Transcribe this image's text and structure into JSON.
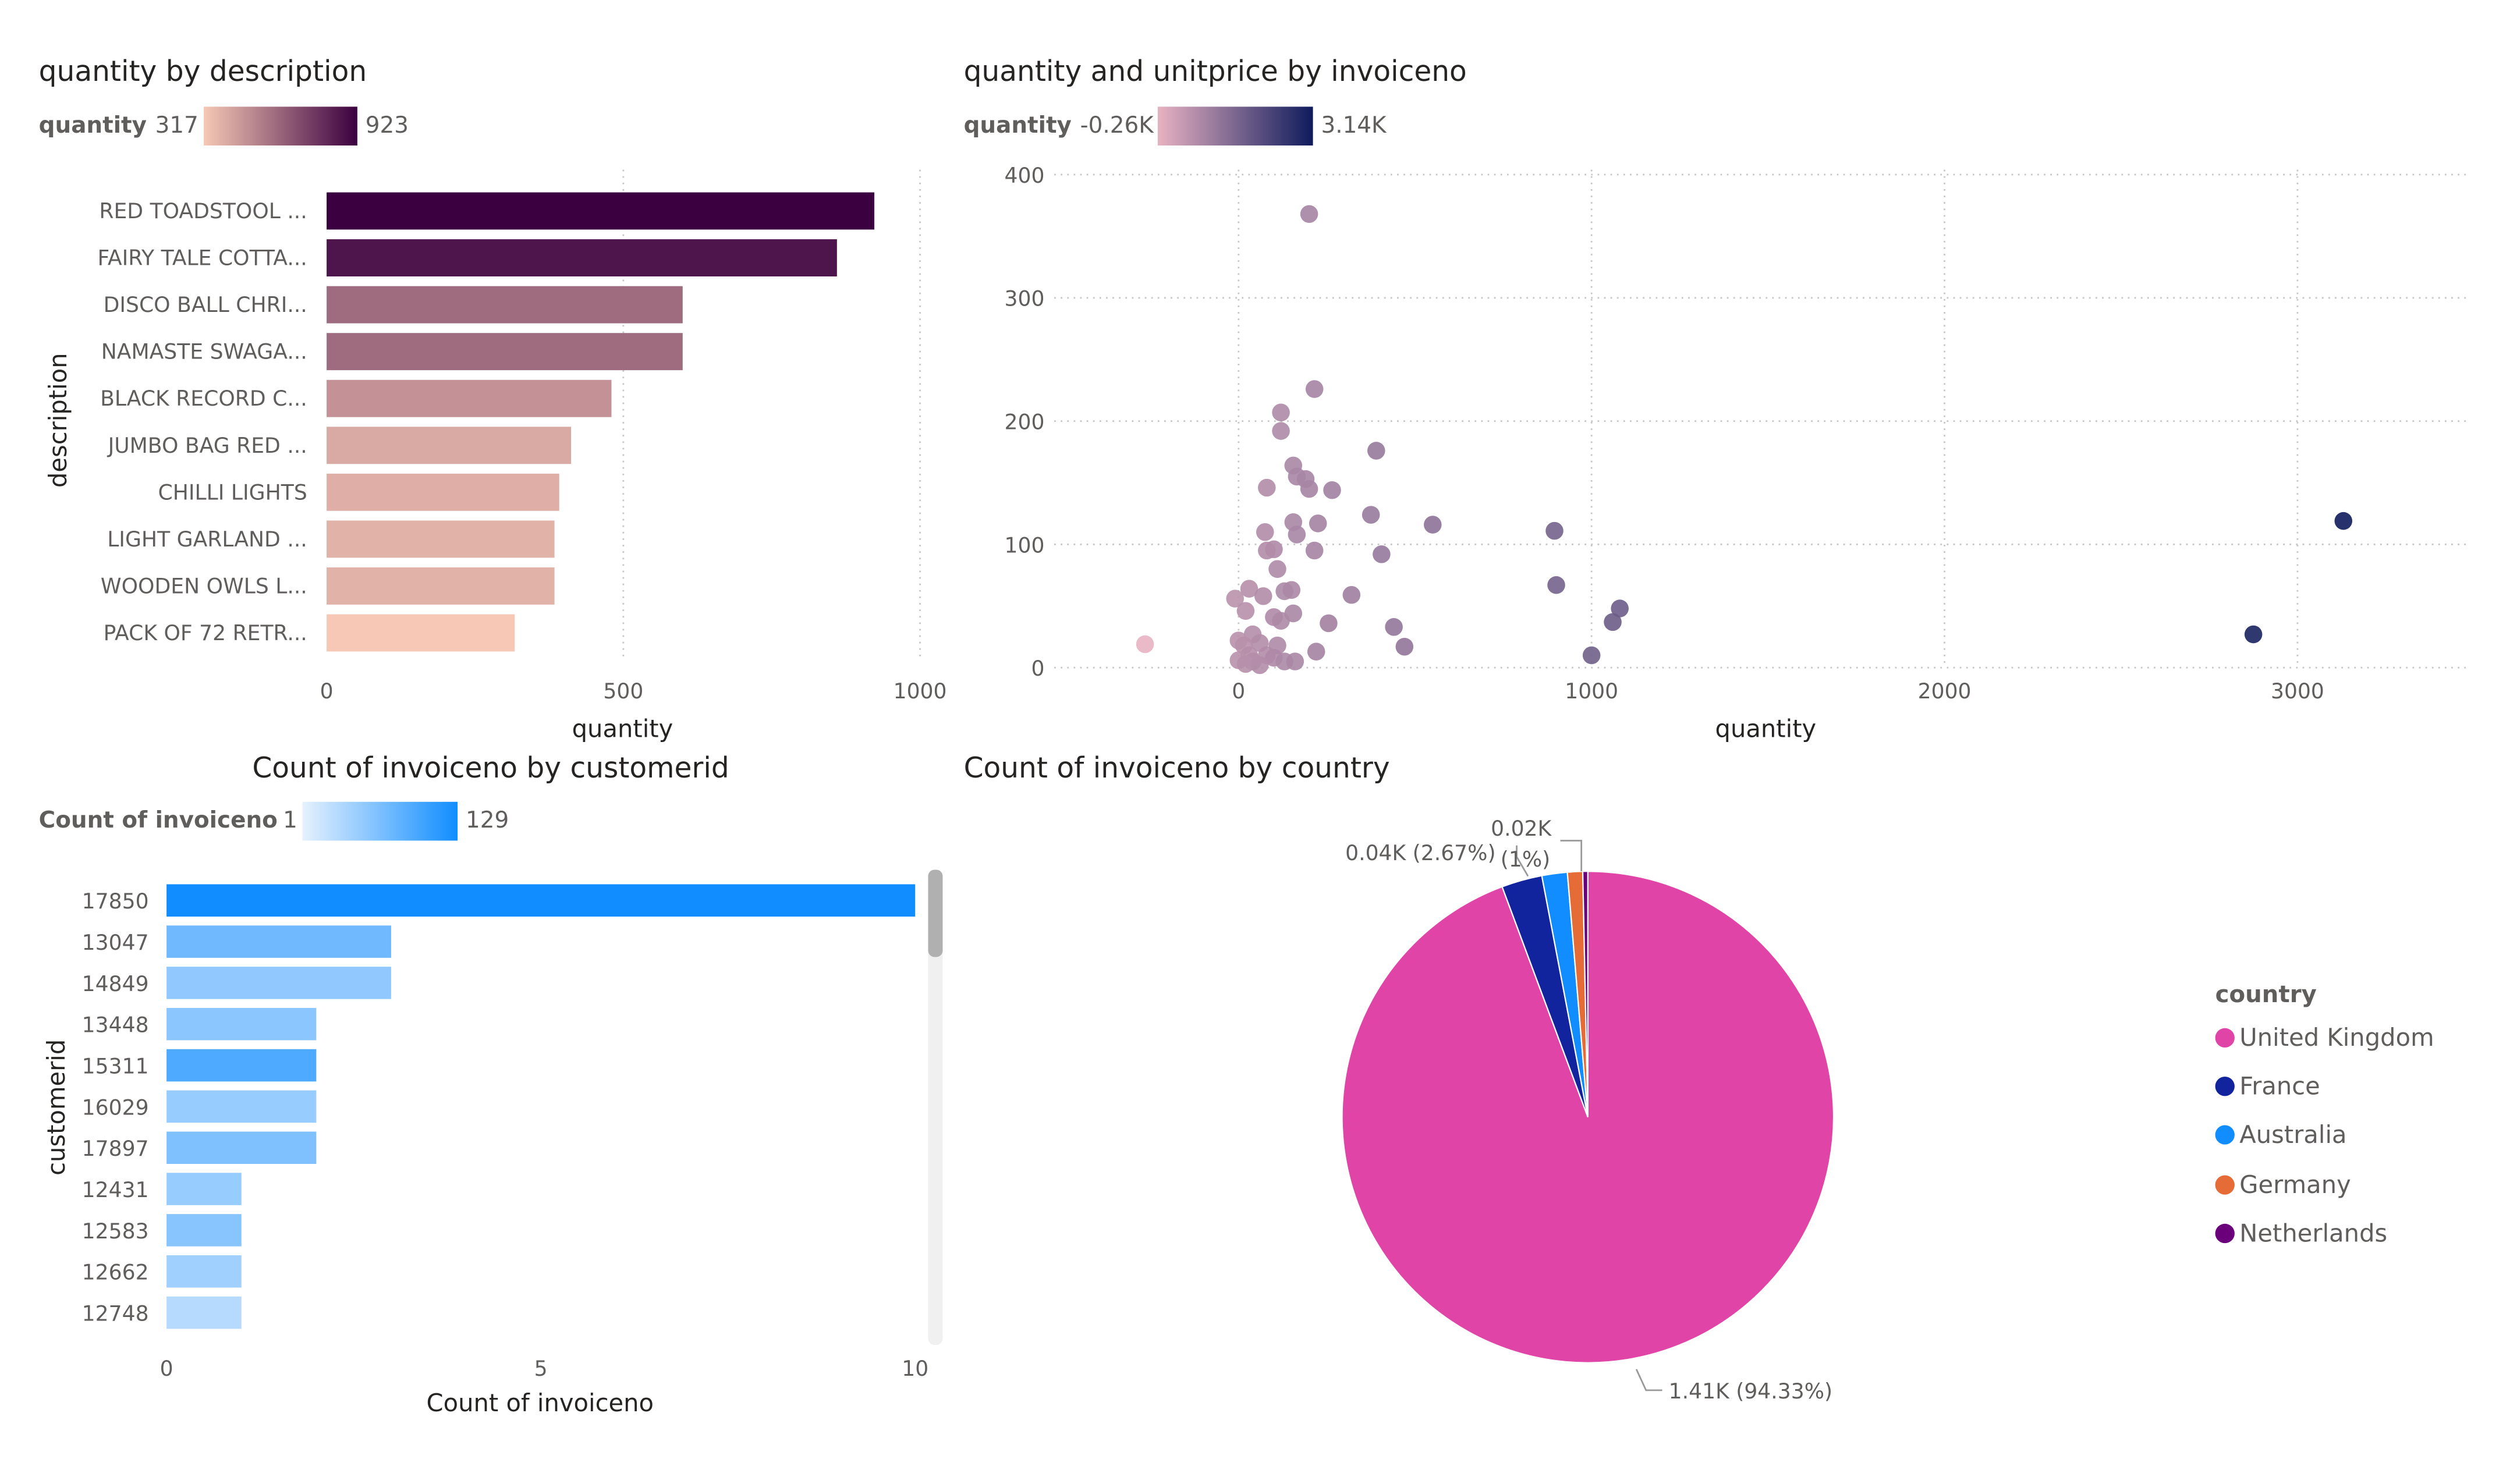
{
  "colors": {
    "purple_low": "#f6c8b5",
    "purple_high": "#3b0040",
    "navy_low": "#e8b2c2",
    "navy_high": "#0f1b5c",
    "blue_low": "#e6f1fd",
    "blue_high": "#118dff",
    "axis_text": "#605e5c",
    "grid": "#c8c6c4"
  },
  "chart_data": [
    {
      "type": "bar",
      "orientation": "horizontal",
      "title": "quantity by description",
      "legend": {
        "label": "quantity",
        "min": "317",
        "max": "923"
      },
      "categories": [
        "RED TOADSTOOL ...",
        "FAIRY TALE COTTA...",
        "DISCO BALL CHRI...",
        "NAMASTE SWAGA...",
        "BLACK RECORD C...",
        "JUMBO BAG RED ...",
        "CHILLI LIGHTS",
        "LIGHT GARLAND ...",
        "WOODEN OWLS L...",
        "PACK OF 72 RETR..."
      ],
      "values": [
        923,
        860,
        600,
        600,
        480,
        412,
        392,
        384,
        384,
        317
      ],
      "xlabel": "quantity",
      "ylabel": "description",
      "xlim": [
        0,
        1000
      ],
      "xticks": [
        "0",
        "500",
        "1000"
      ]
    },
    {
      "type": "scatter",
      "title": "quantity and unitprice by invoiceno",
      "legend": {
        "label": "quantity",
        "min": "-0.26K",
        "max": "3.14K"
      },
      "xlabel": "quantity",
      "ylabel": "unitprice",
      "xlim": [
        -600,
        3500
      ],
      "ylim": [
        0,
        400
      ],
      "xticks": [
        "0",
        "1000",
        "2000",
        "3000"
      ],
      "yticks": [
        "0",
        "100",
        "200",
        "300",
        "400"
      ],
      "points": [
        [
          -265,
          19
        ],
        [
          200,
          368
        ],
        [
          215,
          226
        ],
        [
          120,
          207
        ],
        [
          120,
          192
        ],
        [
          390,
          176
        ],
        [
          155,
          164
        ],
        [
          165,
          155
        ],
        [
          190,
          153
        ],
        [
          80,
          146
        ],
        [
          200,
          145
        ],
        [
          265,
          144
        ],
        [
          375,
          124
        ],
        [
          155,
          118
        ],
        [
          225,
          117
        ],
        [
          550,
          116
        ],
        [
          75,
          110
        ],
        [
          165,
          108
        ],
        [
          895,
          111
        ],
        [
          100,
          96
        ],
        [
          80,
          95
        ],
        [
          215,
          95
        ],
        [
          405,
          92
        ],
        [
          110,
          80
        ],
        [
          900,
          67
        ],
        [
          30,
          64
        ],
        [
          150,
          63
        ],
        [
          130,
          62
        ],
        [
          320,
          59
        ],
        [
          70,
          58
        ],
        [
          -10,
          56
        ],
        [
          1080,
          48
        ],
        [
          20,
          46
        ],
        [
          155,
          44
        ],
        [
          100,
          41
        ],
        [
          120,
          38
        ],
        [
          255,
          36
        ],
        [
          1060,
          37
        ],
        [
          440,
          33
        ],
        [
          40,
          27
        ],
        [
          0,
          22
        ],
        [
          60,
          20
        ],
        [
          15,
          18
        ],
        [
          110,
          18
        ],
        [
          470,
          17
        ],
        [
          220,
          13
        ],
        [
          30,
          10
        ],
        [
          80,
          10
        ],
        [
          100,
          8
        ],
        [
          0,
          6
        ],
        [
          40,
          5
        ],
        [
          130,
          5
        ],
        [
          160,
          5
        ],
        [
          20,
          3
        ],
        [
          60,
          2
        ],
        [
          1000,
          10
        ],
        [
          2875,
          27
        ],
        [
          3130,
          119
        ]
      ]
    },
    {
      "type": "bar",
      "orientation": "horizontal",
      "title": "Count of invoiceno by customerid",
      "legend": {
        "label": "Count of invoiceno",
        "min": "1",
        "max": "129"
      },
      "categories": [
        "17850",
        "13047",
        "14849",
        "13448",
        "15311",
        "16029",
        "17897",
        "12431",
        "12583",
        "12662",
        "12748"
      ],
      "values": [
        10,
        3,
        3,
        2,
        2,
        2,
        2,
        1,
        1,
        1,
        1
      ],
      "color_measure": [
        129,
        45,
        25,
        28,
        70,
        22,
        35,
        22,
        30,
        18,
        10
      ],
      "xlabel": "Count of invoiceno",
      "ylabel": "customerid",
      "xlim": [
        0,
        10
      ],
      "xticks": [
        "0",
        "5",
        "10"
      ]
    },
    {
      "type": "pie",
      "title": "Count of invoiceno by country",
      "legend_title": "country",
      "slices": [
        {
          "label": "United Kingdom",
          "value": 94.33,
          "color": "#e044a7"
        },
        {
          "label": "France",
          "value": 2.67,
          "color": "#12239e"
        },
        {
          "label": "Australia",
          "value": 1.67,
          "color": "#118dff"
        },
        {
          "label": "Germany",
          "value": 1.0,
          "color": "#e66c37"
        },
        {
          "label": "Netherlands",
          "value": 0.33,
          "color": "#6b007b"
        }
      ],
      "data_labels": {
        "uk": "1.41K (94.33%)",
        "france": "0.04K (2.67%)",
        "germany_value": "0.02K",
        "germany_pct": "(1%)"
      }
    }
  ]
}
